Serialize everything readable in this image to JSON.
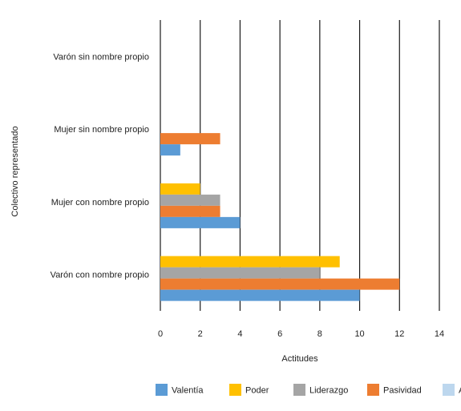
{
  "chart_data": {
    "type": "bar",
    "orientation": "horizontal",
    "xlabel": "Actitudes",
    "ylabel": "Colectivo representado",
    "xlim": [
      0,
      14
    ],
    "xticks": [
      0,
      2,
      4,
      6,
      8,
      10,
      12,
      14
    ],
    "grid": "vertical",
    "legend_position": "bottom",
    "categories": [
      "Varón sin nombre propio",
      "Mujer sin nombre propio",
      "Mujer con nombre propio",
      "Varón con nombre propio"
    ],
    "series": [
      {
        "name": "Valentía",
        "color": "#5b9bd5",
        "values": [
          0,
          1,
          4,
          10
        ]
      },
      {
        "name": "Poder",
        "color": "#ffc000",
        "values": [
          0,
          0,
          2,
          9
        ]
      },
      {
        "name": "Liderazgo",
        "color": "#a5a5a5",
        "values": [
          0,
          0,
          3,
          8
        ]
      },
      {
        "name": "Pasividad",
        "color": "#ed7d31",
        "values": [
          0,
          3,
          3,
          12
        ]
      },
      {
        "name": "Actividad",
        "color": "#bdd7ee",
        "values": [
          0,
          0,
          0,
          0
        ]
      }
    ]
  }
}
